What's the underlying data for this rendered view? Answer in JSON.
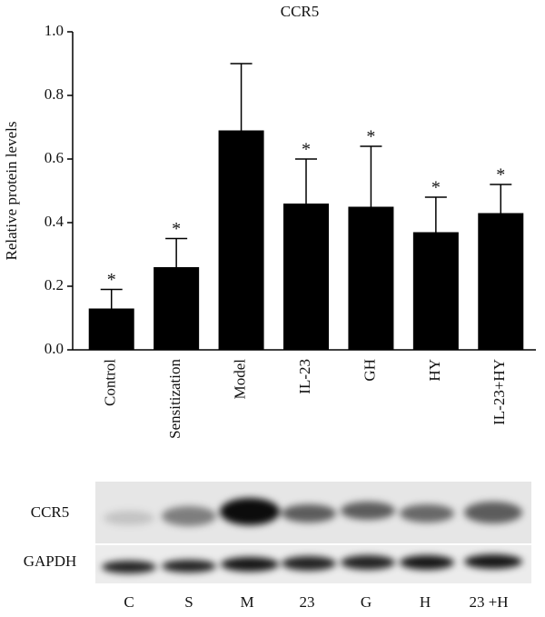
{
  "chart_data": {
    "type": "bar",
    "title": "CCR5",
    "y_label": "Relative protein levels",
    "categories": [
      "Control",
      "Sensitization",
      "Model",
      "IL-23",
      "GH",
      "HY",
      "IL-23+HY"
    ],
    "values": [
      0.13,
      0.26,
      0.69,
      0.46,
      0.45,
      0.37,
      0.43
    ],
    "errors": [
      0.06,
      0.09,
      0.21,
      0.14,
      0.19,
      0.11,
      0.09
    ],
    "significance": [
      "*",
      "*",
      null,
      "*",
      "*",
      "*",
      "*"
    ],
    "color": "#000000",
    "ylim": [
      0,
      1.0
    ],
    "yticks": [
      {
        "value": 0,
        "label": "0.0"
      },
      0.2,
      0.4,
      0.6,
      0.8,
      {
        "value": 1.0,
        "label": "1.0"
      }
    ]
  },
  "blot": {
    "rows": [
      "CCR5",
      "GAPDH"
    ],
    "lanes": [
      "C",
      "S",
      "M",
      "23",
      "G",
      "H",
      "23 +H"
    ]
  }
}
